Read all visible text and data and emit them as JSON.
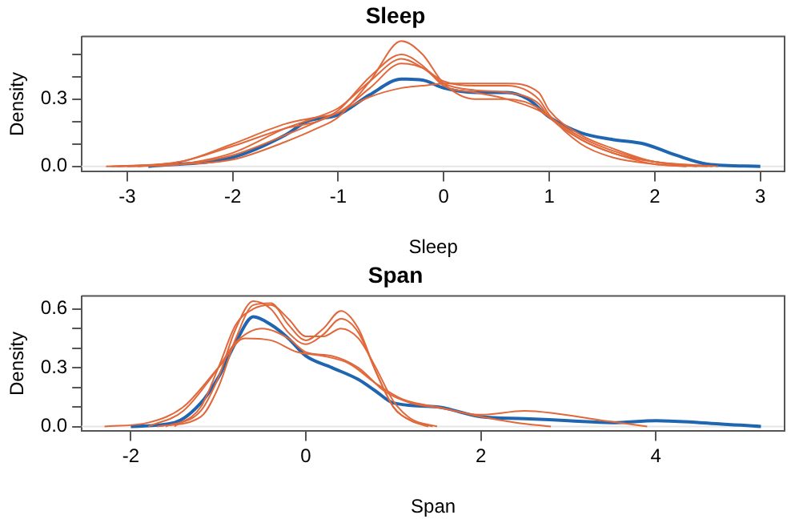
{
  "chart_data": [
    {
      "type": "line",
      "title": "Sleep",
      "xlabel": "Sleep",
      "ylabel": "Density",
      "xlim": [
        -3.43,
        3.23
      ],
      "ylim": [
        -0.024,
        0.58
      ],
      "xticks": [
        -3,
        -2,
        -1,
        0,
        1,
        2,
        3
      ],
      "yticks": [
        {
          "value": 0,
          "label": "0.0"
        },
        {
          "value": 0.1,
          "label": null
        },
        {
          "value": 0.2,
          "label": null
        },
        {
          "value": 0.3,
          "label": "0.3"
        },
        {
          "value": 0.4,
          "label": null
        },
        {
          "value": 0.5,
          "label": null
        }
      ],
      "grid": false,
      "legend": false,
      "marker": "none",
      "line_style": "solid",
      "ref_lines": [
        {
          "axis": "y",
          "value": 0,
          "color": "#e6e6e6"
        }
      ],
      "series": [
        {
          "color": "#e0683a",
          "x": [
            -3.2,
            -2.5,
            -2,
            -1.5,
            -1.2,
            -1,
            -0.7,
            -0.4,
            -0.2,
            0,
            0.3,
            0.6,
            0.9,
            1,
            1.3,
            1.6,
            2,
            2.5
          ],
          "values": [
            0,
            0.01,
            0.03,
            0.11,
            0.17,
            0.22,
            0.38,
            0.56,
            0.5,
            0.37,
            0.3,
            0.3,
            0.26,
            0.22,
            0.12,
            0.06,
            0.01,
            0
          ]
        },
        {
          "color": "#e0683a",
          "x": [
            -3.1,
            -2.5,
            -2,
            -1.5,
            -1.2,
            -1,
            -0.7,
            -0.4,
            -0.2,
            0,
            0.3,
            0.6,
            0.9,
            1,
            1.3,
            1.6,
            2,
            2.4
          ],
          "values": [
            0,
            0.01,
            0.05,
            0.14,
            0.2,
            0.25,
            0.4,
            0.5,
            0.45,
            0.36,
            0.33,
            0.3,
            0.25,
            0.22,
            0.13,
            0.07,
            0.02,
            0
          ]
        },
        {
          "color": "#e0683a",
          "x": [
            -3.0,
            -2.5,
            -2,
            -1.5,
            -1.2,
            -1,
            -0.7,
            -0.4,
            -0.2,
            0,
            0.3,
            0.6,
            0.9,
            1,
            1.3,
            1.6,
            2,
            2.6
          ],
          "values": [
            0,
            0.01,
            0.06,
            0.17,
            0.22,
            0.26,
            0.38,
            0.48,
            0.44,
            0.37,
            0.34,
            0.33,
            0.28,
            0.22,
            0.12,
            0.06,
            0.02,
            0
          ]
        },
        {
          "color": "#e0683a",
          "x": [
            -3.15,
            -2.5,
            -2,
            -1.5,
            -1.2,
            -1,
            -0.7,
            -0.4,
            -0.2,
            0,
            0.3,
            0.6,
            0.9,
            1,
            1.3,
            1.6,
            2,
            2.3
          ],
          "values": [
            0,
            0.02,
            0.1,
            0.19,
            0.22,
            0.24,
            0.35,
            0.46,
            0.44,
            0.38,
            0.36,
            0.36,
            0.3,
            0.23,
            0.1,
            0.04,
            0.01,
            0
          ]
        },
        {
          "color": "#e0683a",
          "x": [
            -2.9,
            -2.5,
            -2,
            -1.5,
            -1.2,
            -1,
            -0.7,
            -0.4,
            -0.2,
            0,
            0.3,
            0.6,
            0.9,
            1,
            1.3,
            1.6,
            2,
            2.55
          ],
          "values": [
            0,
            0.02,
            0.09,
            0.17,
            0.2,
            0.24,
            0.31,
            0.35,
            0.36,
            0.37,
            0.37,
            0.37,
            0.33,
            0.25,
            0.14,
            0.08,
            0.02,
            0
          ]
        },
        {
          "color": "#1f65b0",
          "x": [
            -2.8,
            -2,
            -1.5,
            -1.3,
            -1,
            -0.7,
            -0.4,
            -0.2,
            0,
            0.3,
            0.6,
            0.8,
            1,
            1.3,
            1.6,
            1.9,
            2.2,
            2.5,
            3
          ],
          "values": [
            0,
            0.04,
            0.14,
            0.2,
            0.23,
            0.32,
            0.39,
            0.385,
            0.35,
            0.33,
            0.33,
            0.3,
            0.22,
            0.15,
            0.12,
            0.1,
            0.05,
            0.01,
            0
          ]
        }
      ]
    },
    {
      "type": "line",
      "title": "Span",
      "xlabel": "Span",
      "ylabel": "Density",
      "xlim": [
        -2.56,
        5.47
      ],
      "ylim": [
        -0.024,
        0.666
      ],
      "xticks": [
        -2,
        0,
        2,
        4
      ],
      "yticks": [
        {
          "value": 0,
          "label": "0.0"
        },
        {
          "value": 0.1,
          "label": null
        },
        {
          "value": 0.2,
          "label": null
        },
        {
          "value": 0.3,
          "label": "0.3"
        },
        {
          "value": 0.4,
          "label": null
        },
        {
          "value": 0.5,
          "label": null
        },
        {
          "value": 0.6,
          "label": "0.6"
        }
      ],
      "grid": false,
      "legend": false,
      "marker": "none",
      "line_style": "solid",
      "ref_lines": [
        {
          "axis": "y",
          "value": 0,
          "color": "#e6e6e6"
        }
      ],
      "series": [
        {
          "color": "#e0683a",
          "x": [
            -1.7,
            -1.2,
            -1,
            -0.8,
            -0.6,
            -0.4,
            -0.2,
            0,
            0.2,
            0.4,
            0.6,
            0.8,
            1,
            1.2,
            1.4
          ],
          "values": [
            0,
            0.05,
            0.2,
            0.45,
            0.62,
            0.63,
            0.52,
            0.44,
            0.5,
            0.59,
            0.5,
            0.28,
            0.1,
            0.03,
            0
          ]
        },
        {
          "color": "#e0683a",
          "x": [
            -1.6,
            -1.2,
            -1,
            -0.8,
            -0.6,
            -0.4,
            -0.2,
            0,
            0.2,
            0.4,
            0.6,
            0.8,
            1,
            1.2,
            1.45
          ],
          "values": [
            0,
            0.08,
            0.25,
            0.5,
            0.64,
            0.6,
            0.48,
            0.42,
            0.47,
            0.55,
            0.48,
            0.28,
            0.1,
            0.03,
            0
          ]
        },
        {
          "color": "#e0683a",
          "x": [
            -1.5,
            -1.2,
            -1,
            -0.8,
            -0.6,
            -0.4,
            -0.2,
            0,
            0.2,
            0.4,
            0.6,
            0.8,
            1,
            1.2,
            1.5
          ],
          "values": [
            0,
            0.1,
            0.3,
            0.52,
            0.6,
            0.62,
            0.55,
            0.46,
            0.46,
            0.5,
            0.45,
            0.3,
            0.13,
            0.04,
            0
          ]
        },
        {
          "color": "#e0683a",
          "x": [
            -2.3,
            -1.8,
            -1.4,
            -1,
            -0.7,
            -0.4,
            -0.1,
            0.2,
            0.5,
            0.8,
            1.1,
            1.5,
            2,
            2.5,
            2.8,
            3.4,
            3.9
          ],
          "values": [
            0,
            0.02,
            0.1,
            0.3,
            0.45,
            0.44,
            0.38,
            0.36,
            0.32,
            0.22,
            0.14,
            0.1,
            0.06,
            0.08,
            0.07,
            0.03,
            0
          ]
        },
        {
          "color": "#e0683a",
          "x": [
            -1.8,
            -1.4,
            -1,
            -0.8,
            -0.5,
            -0.2,
            0,
            0.3,
            0.6,
            0.9,
            1.2,
            1.6,
            2,
            2.4,
            2.8
          ],
          "values": [
            0,
            0.08,
            0.3,
            0.43,
            0.5,
            0.45,
            0.38,
            0.36,
            0.3,
            0.18,
            0.12,
            0.09,
            0.05,
            0.02,
            0
          ]
        },
        {
          "color": "#1f65b0",
          "x": [
            -2,
            -1.5,
            -1.2,
            -1,
            -0.8,
            -0.6,
            -0.4,
            -0.2,
            0,
            0.3,
            0.6,
            0.8,
            1,
            1.5,
            2,
            2.5,
            3,
            3.5,
            4,
            4.5,
            5.2
          ],
          "values": [
            0,
            0.02,
            0.12,
            0.25,
            0.43,
            0.56,
            0.52,
            0.45,
            0.36,
            0.3,
            0.24,
            0.18,
            0.12,
            0.1,
            0.05,
            0.04,
            0.03,
            0.02,
            0.03,
            0.02,
            0
          ]
        }
      ]
    }
  ]
}
